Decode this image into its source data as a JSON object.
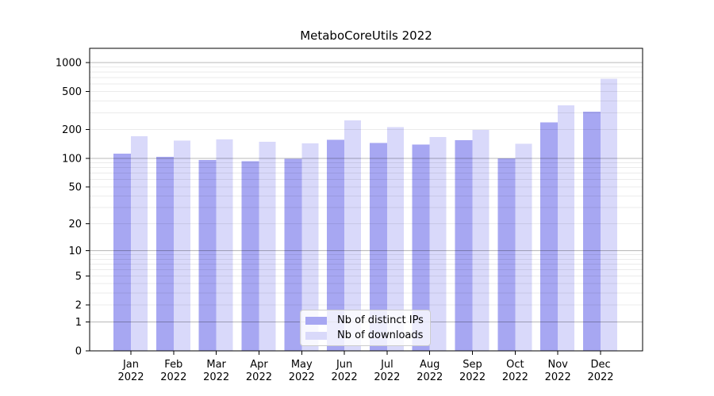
{
  "chart_data": {
    "type": "bar",
    "title": "MetaboCoreUtils 2022",
    "categories": [
      "Jan",
      "Feb",
      "Mar",
      "Apr",
      "May",
      "Jun",
      "Jul",
      "Aug",
      "Sep",
      "Oct",
      "Nov",
      "Dec"
    ],
    "year_label": "2022",
    "series": [
      {
        "name": "Nb of distinct IPs",
        "color": "#a7a7f2",
        "values": [
          112,
          104,
          96,
          93,
          99,
          156,
          145,
          139,
          155,
          100,
          237,
          308
        ]
      },
      {
        "name": "Nb of downloads",
        "color": "#d9d9fa",
        "values": [
          170,
          153,
          158,
          149,
          144,
          250,
          212,
          167,
          199,
          142,
          359,
          676
        ]
      }
    ],
    "yaxis": {
      "scale": "log1p",
      "ticks": [
        0,
        1,
        2,
        5,
        10,
        20,
        50,
        100,
        200,
        500,
        1000
      ],
      "ylim": [
        0,
        1410
      ]
    },
    "xlabel": "",
    "ylabel": "",
    "grid": {
      "on": true,
      "major_color": "rgba(0,0,0,0.28)",
      "minor_color": "rgba(0,0,0,0.08)"
    },
    "legend_position": "bottom-center",
    "frame_color": "#000000",
    "background_color": "#ffffff"
  }
}
